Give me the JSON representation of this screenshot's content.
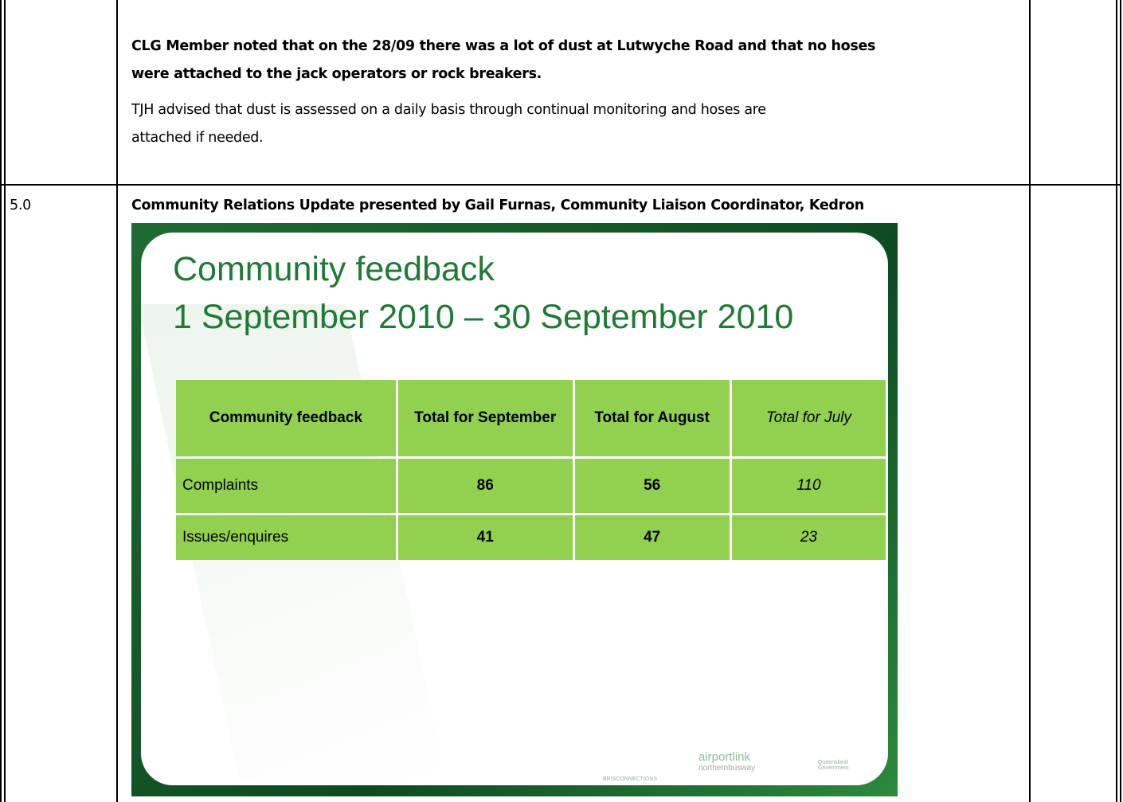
{
  "notes": {
    "bold_lines": [
      "CLG Member noted that on the 28/09 there was a lot of dust at Lutwyche Road and that no hoses",
      "were attached to the jack operators or rock breakers."
    ],
    "text_lines": [
      "TJH advised that dust is assessed on a daily basis through continual monitoring and hoses are",
      "attached if needed."
    ]
  },
  "item": {
    "number": "5.0",
    "heading": "Community Relations Update presented by Gail Furnas, Community Liaison Coordinator, Kedron"
  },
  "slide": {
    "title_lines": [
      "Community feedback",
      "1 September 2010 – 30 September 2010"
    ],
    "table": {
      "header": [
        "Community feedback",
        "Total for September",
        "Total for August",
        "Total for July"
      ],
      "rows": [
        [
          "Complaints",
          86,
          56,
          110
        ],
        [
          "Issues/enquires",
          41,
          47,
          23
        ]
      ]
    },
    "logos": [
      "BRISCONNECTIONS",
      "airportlink",
      "northernbusway",
      "Queensland Government"
    ]
  }
}
